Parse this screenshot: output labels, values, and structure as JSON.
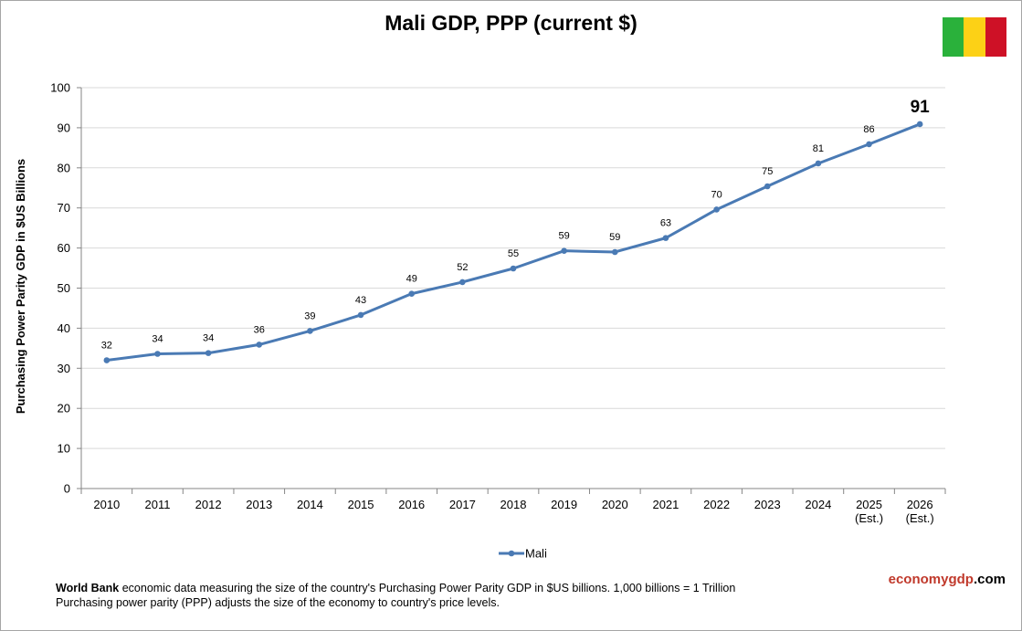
{
  "chart_data": {
    "type": "line",
    "title": "Mali GDP, PPP (current $)",
    "ylabel": "Purchasing Power Parity GDP in $US Billions",
    "xlabel": "",
    "ylim": [
      0,
      100
    ],
    "yticks": [
      0,
      10,
      20,
      30,
      40,
      50,
      60,
      70,
      80,
      90,
      100
    ],
    "grid": true,
    "legend_position": "bottom",
    "categories": [
      [
        "2010"
      ],
      [
        "2011"
      ],
      [
        "2012"
      ],
      [
        "2013"
      ],
      [
        "2014"
      ],
      [
        "2015"
      ],
      [
        "2016"
      ],
      [
        "2017"
      ],
      [
        "2018"
      ],
      [
        "2019"
      ],
      [
        "2020"
      ],
      [
        "2021"
      ],
      [
        "2022"
      ],
      [
        "2023"
      ],
      [
        "2024"
      ],
      [
        "2025",
        "(Est.)"
      ],
      [
        "2026",
        "(Est.)"
      ]
    ],
    "series": [
      {
        "name": "Mali",
        "color": "#4a7ab4",
        "values": [
          32.0,
          33.6,
          33.8,
          35.9,
          39.3,
          43.3,
          48.6,
          51.5,
          54.9,
          59.3,
          59.0,
          62.5,
          69.6,
          75.4,
          81.1,
          85.9,
          90.9
        ],
        "data_labels": [
          "32",
          "34",
          "34",
          "36",
          "39",
          "43",
          "49",
          "52",
          "55",
          "59",
          "59",
          "63",
          "70",
          "75",
          "81",
          "86",
          "91"
        ]
      }
    ]
  },
  "flag": {
    "colors": [
      "#2ab13b",
      "#fcd116",
      "#ce1126"
    ]
  },
  "footnote": {
    "source_bold": "World Bank",
    "line1_rest": " economic data measuring the size of the country's Purchasing Power Parity GDP in $US billions. 1,000 billions = 1 Trillion",
    "line2": "Purchasing power parity (PPP) adjusts the size of the economy to country's price levels."
  },
  "brand": {
    "part1": "economy",
    "part2": "gdp",
    "part3": ".com",
    "color1": "#c0392b",
    "color2": "#c0392b",
    "color3": "#000000"
  }
}
